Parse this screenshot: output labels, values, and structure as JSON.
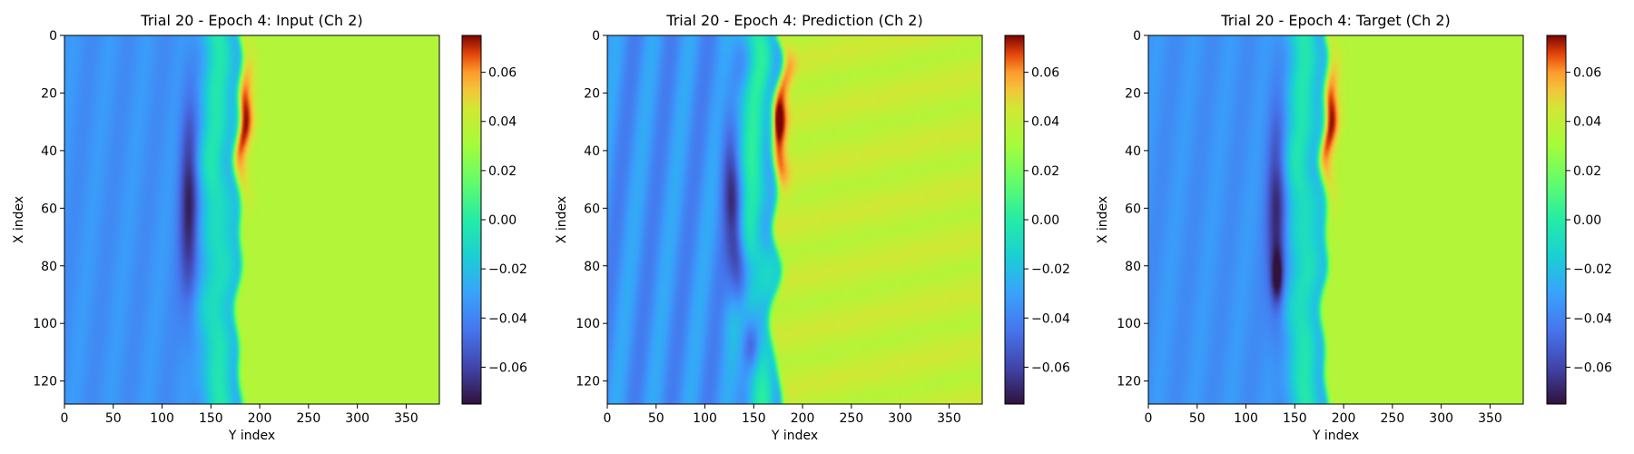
{
  "chart_data": [
    {
      "type": "heatmap",
      "title": "Trial 20 - Epoch 4: Input (Ch 2)",
      "xlabel": "Y index",
      "ylabel": "X index",
      "xlim": [
        0,
        384
      ],
      "ylim": [
        128,
        0
      ],
      "x_ticks": [
        "0",
        "50",
        "100",
        "150",
        "200",
        "250",
        "300",
        "350"
      ],
      "y_ticks": [
        "0",
        "20",
        "40",
        "60",
        "80",
        "100",
        "120"
      ],
      "colorbar": {
        "range": [
          -0.075,
          0.075
        ],
        "ticks": [
          "0.06",
          "0.04",
          "0.02",
          "0.00",
          "−0.02",
          "−0.04",
          "−0.06"
        ],
        "colormap": "turbo"
      },
      "features": {
        "front_position_y": 178,
        "background_left": -0.035,
        "background_right": 0.035,
        "peak_max": 0.07,
        "peak_min": -0.065
      }
    },
    {
      "type": "heatmap",
      "title": "Trial 20 - Epoch 4: Prediction (Ch 2)",
      "xlabel": "Y index",
      "ylabel": "X index",
      "xlim": [
        0,
        384
      ],
      "ylim": [
        128,
        0
      ],
      "x_ticks": [
        "0",
        "50",
        "100",
        "150",
        "200",
        "250",
        "300",
        "350"
      ],
      "y_ticks": [
        "0",
        "20",
        "40",
        "60",
        "80",
        "100",
        "120"
      ],
      "colorbar": {
        "range": [
          -0.075,
          0.075
        ],
        "ticks": [
          "0.06",
          "0.04",
          "0.02",
          "0.00",
          "−0.02",
          "−0.04",
          "−0.06"
        ],
        "colormap": "turbo"
      },
      "features": {
        "front_position_y": 172,
        "background_left": -0.035,
        "background_right": 0.04,
        "peak_max": 0.07,
        "peak_min": -0.065
      }
    },
    {
      "type": "heatmap",
      "title": "Trial 20 - Epoch 4: Target (Ch 2)",
      "xlabel": "Y index",
      "ylabel": "X index",
      "xlim": [
        0,
        384
      ],
      "ylim": [
        128,
        0
      ],
      "x_ticks": [
        "0",
        "50",
        "100",
        "150",
        "200",
        "250",
        "300",
        "350"
      ],
      "y_ticks": [
        "0",
        "20",
        "40",
        "60",
        "80",
        "100",
        "120"
      ],
      "colorbar": {
        "range": [
          -0.075,
          0.075
        ],
        "ticks": [
          "0.06",
          "0.04",
          "0.02",
          "0.00",
          "−0.02",
          "−0.04",
          "−0.06"
        ],
        "colormap": "turbo"
      },
      "features": {
        "front_position_y": 180,
        "background_left": -0.035,
        "background_right": 0.035,
        "peak_max": 0.07,
        "peak_min": -0.07
      }
    }
  ]
}
